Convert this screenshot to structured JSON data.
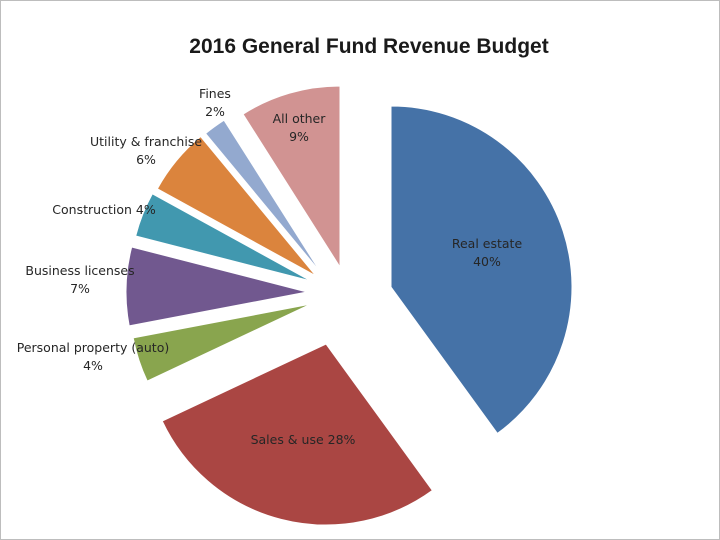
{
  "chart_data": {
    "type": "pie",
    "title": "2016 General Fund Revenue Budget",
    "exploded": true,
    "start_angle_deg": 0,
    "direction": "clockwise",
    "slices": [
      {
        "label": "Real estate",
        "percent": "40%",
        "value": 40,
        "color": "#4572A7"
      },
      {
        "label": "Sales & use",
        "percent": "28%",
        "value": 28,
        "color": "#AA4643"
      },
      {
        "label": "Personal property (auto)",
        "percent": "4%",
        "value": 4,
        "color": "#89A54E"
      },
      {
        "label": "Business licenses",
        "percent": "7%",
        "value": 7,
        "color": "#71588F"
      },
      {
        "label": "Construction",
        "percent": "4%",
        "value": 4,
        "color": "#4198AF"
      },
      {
        "label": "Utility & franchise",
        "percent": "6%",
        "value": 6,
        "color": "#DB843D"
      },
      {
        "label": "Fines",
        "percent": "2%",
        "value": 2,
        "color": "#93A9CF"
      },
      {
        "label": "All other",
        "percent": "9%",
        "value": 9,
        "color": "#D19392"
      }
    ]
  }
}
